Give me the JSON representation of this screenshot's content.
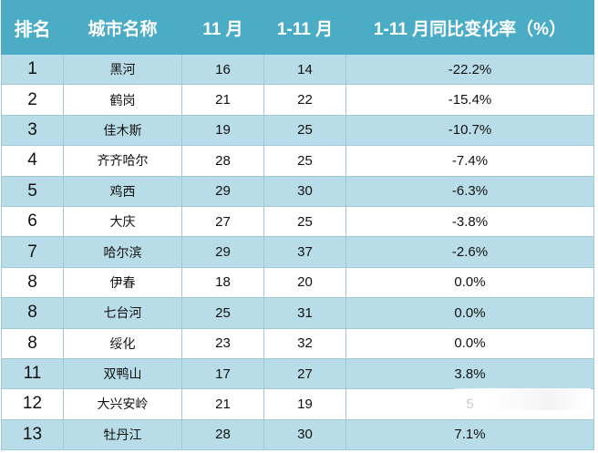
{
  "headers": [
    "排名",
    "城市名称",
    "11 月",
    "1-11 月",
    "1-11 月同比变化率（%）"
  ],
  "rows": [
    {
      "rank": "1",
      "city": "黑河",
      "nov": "16",
      "ytd": "14",
      "rate": "-22.2%"
    },
    {
      "rank": "2",
      "city": "鹤岗",
      "nov": "21",
      "ytd": "22",
      "rate": "-15.4%"
    },
    {
      "rank": "3",
      "city": "佳木斯",
      "nov": "19",
      "ytd": "25",
      "rate": "-10.7%"
    },
    {
      "rank": "4",
      "city": "齐齐哈尔",
      "nov": "28",
      "ytd": "25",
      "rate": "-7.4%"
    },
    {
      "rank": "5",
      "city": "鸡西",
      "nov": "29",
      "ytd": "30",
      "rate": "-6.3%"
    },
    {
      "rank": "6",
      "city": "大庆",
      "nov": "27",
      "ytd": "25",
      "rate": "-3.8%"
    },
    {
      "rank": "7",
      "city": "哈尔滨",
      "nov": "29",
      "ytd": "37",
      "rate": "-2.6%"
    },
    {
      "rank": "8",
      "city": "伊春",
      "nov": "18",
      "ytd": "20",
      "rate": "0.0%"
    },
    {
      "rank": "8",
      "city": "七台河",
      "nov": "25",
      "ytd": "31",
      "rate": "0.0%"
    },
    {
      "rank": "8",
      "city": "绥化",
      "nov": "23",
      "ytd": "32",
      "rate": "0.0%"
    },
    {
      "rank": "11",
      "city": "双鸭山",
      "nov": "17",
      "ytd": "27",
      "rate": "3.8%"
    },
    {
      "rank": "12",
      "city": "大兴安岭",
      "nov": "21",
      "ytd": "19",
      "rate": "5"
    },
    {
      "rank": "13",
      "city": "牡丹江",
      "nov": "28",
      "ytd": "30",
      "rate": "7.1%"
    }
  ],
  "colors": {
    "header_bg": "#4bacc6",
    "band": "#b9dde8",
    "border": "#a0c8d6"
  }
}
